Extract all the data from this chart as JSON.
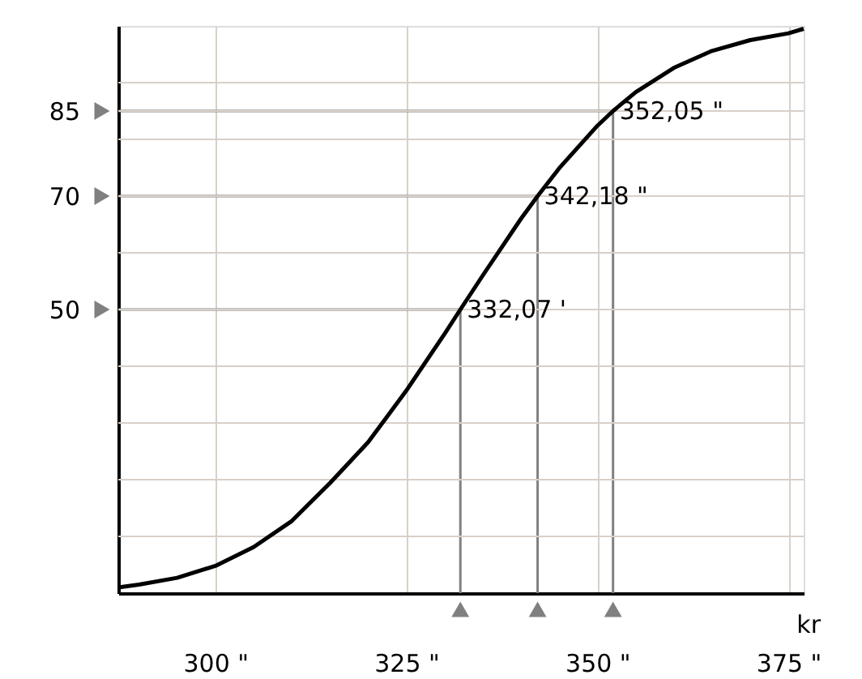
{
  "chart_data": {
    "type": "line",
    "xlabel": "kr",
    "x": [
      287.3,
      290,
      295,
      300,
      305,
      310,
      315,
      320,
      325,
      330,
      332.07,
      335,
      340,
      342.18,
      345,
      350,
      352.05,
      355,
      360,
      365,
      370,
      375,
      377
    ],
    "series": [
      {
        "color": "#000000",
        "values": [
          1.0,
          1.5,
          2.7,
          4.8,
          8.1,
          12.7,
          19.4,
          26.6,
          35.7,
          45.7,
          50,
          56.0,
          66.0,
          70,
          74.9,
          82.4,
          85,
          88.3,
          92.6,
          95.6,
          97.5,
          98.7,
          99.5
        ]
      }
    ],
    "xlim": [
      287.3,
      377
    ],
    "ylim": [
      0,
      100
    ],
    "xticks": [
      {
        "value": 300,
        "label": "300 \""
      },
      {
        "value": 325,
        "label": "325 \""
      },
      {
        "value": 350,
        "label": "350 \""
      },
      {
        "value": 375,
        "label": "375 \""
      }
    ],
    "yticks": [
      {
        "value": 10,
        "label": null
      },
      {
        "value": 20,
        "label": null
      },
      {
        "value": 30,
        "label": null
      },
      {
        "value": 40,
        "label": null
      },
      {
        "value": 60,
        "label": null
      },
      {
        "value": 80,
        "label": null
      },
      {
        "value": 90,
        "label": null
      },
      50,
      70,
      85
    ],
    "ref_lines": [
      {
        "axis": "y",
        "value": 50,
        "color": "#808080"
      },
      {
        "axis": "y",
        "value": 70,
        "color": "#808080"
      },
      {
        "axis": "y",
        "value": 85,
        "color": "#808080"
      },
      {
        "axis": "x",
        "value": 332.07,
        "label": "332,07 '",
        "color": "#808080"
      },
      {
        "axis": "x",
        "value": 342.18,
        "label": "342,18 \"",
        "color": "#808080"
      },
      {
        "axis": "x",
        "value": 352.05,
        "label": "352,05 \"",
        "color": "#808080"
      }
    ],
    "grid": true,
    "marker": "none",
    "line_style": "solid"
  }
}
